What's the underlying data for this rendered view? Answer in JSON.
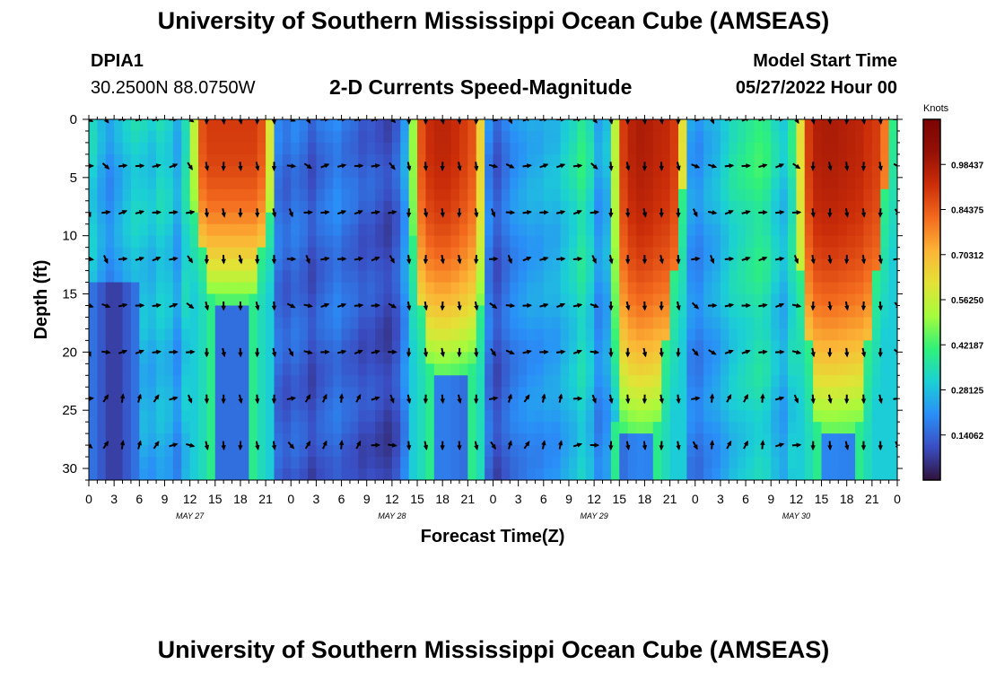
{
  "page": {
    "title": "University of Southern Mississippi Ocean Cube (AMSEAS)",
    "station_id": "DPIA1",
    "coords": "30.2500N  88.0750W",
    "plot_title": "2-D Currents Speed-Magnitude",
    "model_start_label": "Model Start Time",
    "model_start_value": "05/27/2022 Hour 00",
    "footer_title": "University of Southern Mississippi Ocean Cube (AMSEAS)"
  },
  "chart_data": {
    "type": "heatmap",
    "title": "2-D Currents Speed-Magnitude",
    "xlabel": "Forecast Time(Z)",
    "ylabel": "Depth (ft)",
    "x_unit": "hours since 05/27/2022 00Z",
    "xlim": [
      0,
      96
    ],
    "ylim": [
      31,
      0
    ],
    "x_tick_values": [
      0,
      3,
      6,
      9,
      12,
      15,
      18,
      21,
      24,
      27,
      30,
      33,
      36,
      39,
      42,
      45,
      48,
      51,
      54,
      57,
      60,
      63,
      66,
      69,
      72,
      75,
      78,
      81,
      84,
      87,
      90,
      93,
      96
    ],
    "x_tick_labels": [
      "0",
      "3",
      "6",
      "9",
      "12",
      "15",
      "18",
      "21",
      "0",
      "3",
      "6",
      "9",
      "12",
      "15",
      "18",
      "21",
      "0",
      "3",
      "6",
      "9",
      "12",
      "15",
      "18",
      "21",
      "0",
      "3",
      "6",
      "9",
      "12",
      "15",
      "18",
      "21",
      "0"
    ],
    "y_ticks": [
      0,
      5,
      10,
      15,
      20,
      25,
      30
    ],
    "day_labels": [
      {
        "hour": 12,
        "label": "MAY 27"
      },
      {
        "hour": 36,
        "label": "MAY 28"
      },
      {
        "hour": 60,
        "label": "MAY 29"
      },
      {
        "hour": 84,
        "label": "MAY 30"
      }
    ],
    "colorbar": {
      "label": "Knots",
      "tick_labels": [
        "0.98437",
        "0.84375",
        "0.70312",
        "0.56250",
        "0.42187",
        "0.28125",
        "0.14062"
      ],
      "tick_values": [
        0.98437,
        0.84375,
        0.70312,
        0.5625,
        0.42187,
        0.28125,
        0.14062
      ],
      "range": [
        0.0,
        1.125
      ],
      "colors": [
        "#30123b",
        "#3a4dc2",
        "#2a8ef8",
        "#1bd0d5",
        "#2ff17a",
        "#a4fc3c",
        "#e3e236",
        "#fcb436",
        "#f36a1e",
        "#cc2e09",
        "#951006",
        "#7a0403"
      ]
    },
    "speed_profile_hours": [
      0,
      1,
      2,
      3,
      4,
      5,
      6,
      7,
      8,
      9,
      10,
      11,
      12,
      13,
      14,
      15,
      16,
      17,
      18,
      19,
      20,
      21,
      22,
      23,
      24,
      25,
      26,
      27,
      28,
      29,
      30,
      31,
      32,
      33,
      34,
      35,
      36,
      37,
      38,
      39,
      40,
      41,
      42,
      43,
      44,
      45,
      46,
      47,
      48,
      49,
      50,
      51,
      52,
      53,
      54,
      55,
      56,
      57,
      58,
      59,
      60,
      61,
      62,
      63,
      64,
      65,
      66,
      67,
      68,
      69,
      70,
      71,
      72,
      73,
      74,
      75,
      76,
      77,
      78,
      79,
      80,
      81,
      82,
      83,
      84,
      85,
      86,
      87,
      88,
      89,
      90,
      91,
      92,
      93,
      94,
      95,
      96
    ],
    "surface_speed_knots": [
      0.3,
      0.32,
      0.26,
      0.22,
      0.26,
      0.3,
      0.33,
      0.32,
      0.3,
      0.34,
      0.32,
      0.26,
      0.36,
      0.55,
      0.86,
      0.9,
      0.9,
      0.9,
      0.9,
      0.9,
      0.9,
      0.86,
      0.6,
      0.18,
      0.15,
      0.18,
      0.16,
      0.12,
      0.16,
      0.18,
      0.2,
      0.17,
      0.16,
      0.13,
      0.14,
      0.12,
      0.1,
      0.14,
      0.24,
      0.5,
      0.86,
      0.93,
      0.95,
      0.95,
      0.93,
      0.9,
      0.86,
      0.65,
      0.2,
      0.13,
      0.18,
      0.22,
      0.24,
      0.26,
      0.26,
      0.28,
      0.28,
      0.32,
      0.35,
      0.4,
      0.35,
      0.24,
      0.28,
      0.55,
      0.9,
      0.96,
      0.98,
      0.97,
      0.95,
      0.94,
      0.9,
      0.62,
      0.24,
      0.22,
      0.26,
      0.28,
      0.32,
      0.36,
      0.38,
      0.4,
      0.42,
      0.4,
      0.34,
      0.3,
      0.38,
      0.62,
      0.9,
      0.97,
      0.98,
      0.98,
      0.97,
      0.96,
      0.95,
      0.92,
      0.9,
      0.8,
      0.6
    ],
    "core_peak_hours": [
      17,
      43,
      65,
      89
    ],
    "core_bottom_depth_ft": [
      16,
      22,
      27,
      27
    ],
    "arrow_grid": {
      "hours": [
        0,
        2,
        4,
        6,
        8,
        10,
        12,
        14,
        16,
        18,
        20,
        22,
        24,
        26,
        28,
        30,
        32,
        34,
        36,
        38,
        40,
        42,
        44,
        46,
        48,
        50,
        52,
        54,
        56,
        58,
        60,
        62,
        64,
        66,
        68,
        70,
        72,
        74,
        76,
        78,
        80,
        82,
        84,
        86,
        88,
        90,
        92,
        94,
        96
      ],
      "depths_ft": [
        0,
        4,
        8,
        12,
        16,
        20,
        24,
        28
      ]
    }
  }
}
